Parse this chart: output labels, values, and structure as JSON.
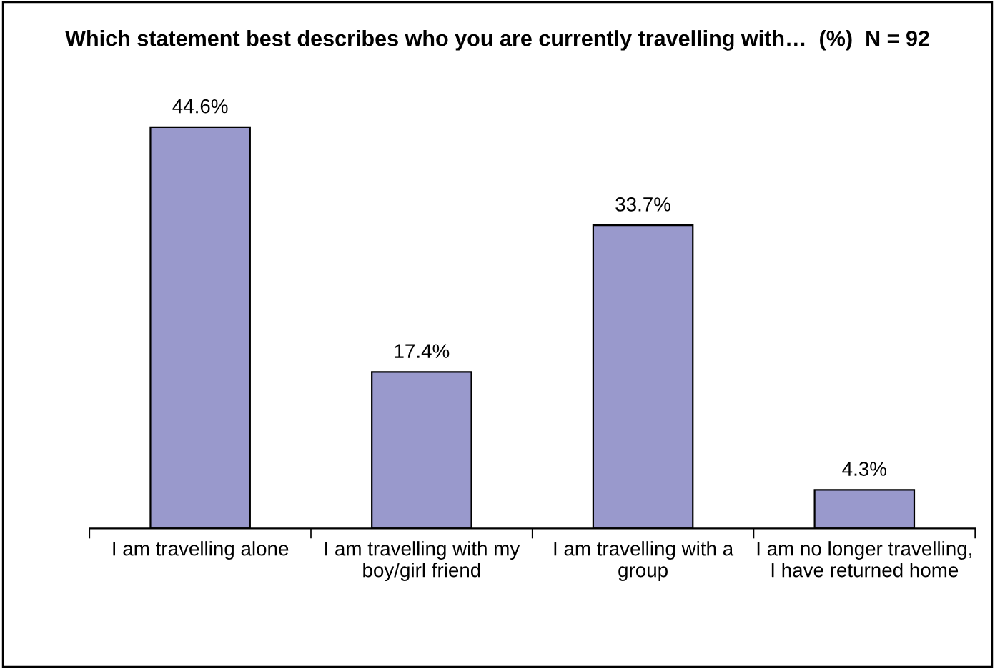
{
  "chart_data": {
    "type": "bar",
    "title": "Which statement best describes who you are currently travelling with…  (%)  N = 92",
    "categories": [
      "I am travelling alone",
      "I am travelling with my boy/girl friend",
      "I am travelling with a group",
      "I am no longer travelling, I have returned home"
    ],
    "values": [
      44.6,
      17.4,
      33.7,
      4.3
    ],
    "color": "#9999cc",
    "value_labels": [
      "44.6%",
      "17.4%",
      "33.7%",
      "4.3%"
    ],
    "grid": false,
    "legend": false
  }
}
